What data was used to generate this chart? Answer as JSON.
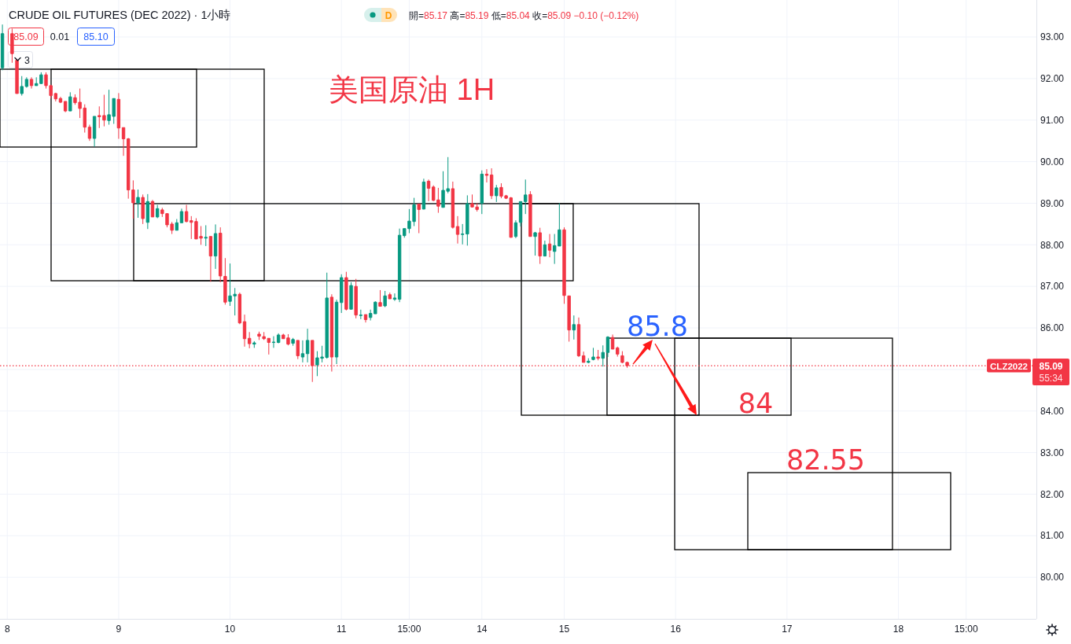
{
  "chart_data": {
    "type": "candlestick",
    "title": "CRUDE OIL FUTURES (DEC 2022) · 1小時",
    "categories": [
      null,
      "8",
      null,
      null,
      null,
      null,
      null,
      null,
      null,
      null,
      null,
      null,
      null,
      null,
      null,
      null,
      null,
      null,
      null,
      null,
      null,
      null,
      null,
      null,
      "9",
      null,
      null,
      null,
      null,
      null,
      null,
      null,
      null,
      null,
      null,
      null,
      null,
      null,
      null,
      null,
      null,
      null,
      null,
      null,
      null,
      null,
      null,
      "10",
      null,
      null,
      null,
      null,
      null,
      null,
      null,
      null,
      null,
      null,
      null,
      null,
      null,
      null,
      null,
      null,
      null,
      null,
      null,
      null,
      null,
      null,
      "11",
      null,
      null,
      null,
      null,
      null,
      null,
      null,
      null,
      null,
      null,
      null,
      null,
      null,
      "15:00",
      null,
      null,
      null,
      null,
      null,
      null,
      null,
      null,
      null,
      null,
      null,
      null,
      null,
      null,
      "14",
      null,
      null,
      null,
      null,
      null,
      null,
      null,
      null,
      null,
      null,
      null,
      null,
      null,
      null,
      null,
      null,
      "15",
      null,
      null,
      null,
      null,
      null,
      null,
      null,
      null,
      null,
      null,
      null,
      null,
      null,
      null,
      null,
      null,
      null,
      null,
      null,
      null,
      null,
      null,
      "16",
      null,
      null,
      null,
      null,
      null,
      null,
      null,
      null,
      null,
      null,
      null,
      null,
      null,
      null,
      null,
      null,
      null,
      null,
      null,
      null,
      null,
      null,
      "17",
      null,
      null,
      null,
      null,
      null,
      null,
      null,
      null,
      null,
      null,
      null,
      null,
      null,
      null,
      null,
      null,
      null,
      null,
      null,
      null,
      null,
      null,
      "18",
      null,
      null,
      null,
      null,
      null,
      null,
      null,
      null,
      null,
      null,
      null,
      null,
      null,
      "15:00",
      null,
      null,
      null,
      null,
      null,
      null,
      null,
      null,
      null,
      null,
      null,
      null,
      null,
      null
    ],
    "ohlc": [
      [
        92.26,
        93.3,
        92.2,
        93.08
      ],
      null,
      [
        93.08,
        93.2,
        92.38,
        92.6
      ],
      [
        92.44,
        92.47,
        91.64,
        91.64
      ],
      [
        91.64,
        92.06,
        91.59,
        91.81
      ],
      [
        91.81,
        92.03,
        91.78,
        91.98
      ],
      [
        91.98,
        92.03,
        91.76,
        91.83
      ],
      [
        91.83,
        92.03,
        91.83,
        91.88
      ],
      [
        91.88,
        92.15,
        91.88,
        92.09
      ],
      [
        92.09,
        92.15,
        91.76,
        91.83
      ],
      [
        91.83,
        91.85,
        91.52,
        91.59
      ],
      [
        91.64,
        91.66,
        91.45,
        91.51
      ],
      [
        91.52,
        91.56,
        91.41,
        91.43
      ],
      [
        91.45,
        91.45,
        91.19,
        91.22
      ],
      [
        91.22,
        91.67,
        91.22,
        91.56
      ],
      [
        91.54,
        91.62,
        91.37,
        91.42
      ],
      [
        91.43,
        91.76,
        91.05,
        91.28
      ],
      [
        91.29,
        91.38,
        90.7,
        90.83
      ],
      [
        90.83,
        90.89,
        90.5,
        90.56
      ],
      [
        90.56,
        91.09,
        90.36,
        91.09
      ],
      [
        91.11,
        91.33,
        90.81,
        91.08
      ],
      [
        91.11,
        91.61,
        90.85,
        91.0
      ],
      [
        90.99,
        91.73,
        90.89,
        91.13
      ],
      [
        91.09,
        91.52,
        90.91,
        91.52
      ],
      [
        91.5,
        91.65,
        90.55,
        90.81
      ],
      [
        90.82,
        90.82,
        90.14,
        90.55
      ],
      [
        90.55,
        90.57,
        89.11,
        89.32
      ],
      [
        89.32,
        89.55,
        88.63,
        89.01
      ],
      [
        89.01,
        89.33,
        88.65,
        89.14
      ],
      [
        89.14,
        89.21,
        88.5,
        88.63
      ],
      [
        88.54,
        89.22,
        88.38,
        89.04
      ],
      [
        89.04,
        89.08,
        88.67,
        88.67
      ],
      [
        88.67,
        88.96,
        88.64,
        88.87
      ],
      [
        88.84,
        88.89,
        88.67,
        88.75
      ],
      [
        88.75,
        88.75,
        88.42,
        88.48
      ],
      [
        88.5,
        88.55,
        88.26,
        88.35
      ],
      [
        88.35,
        88.62,
        88.35,
        88.53
      ],
      [
        88.53,
        88.87,
        88.53,
        88.8
      ],
      [
        88.8,
        88.96,
        88.54,
        88.56
      ],
      [
        88.58,
        88.69,
        88.14,
        88.54
      ],
      [
        88.56,
        88.64,
        88.14,
        88.14
      ],
      [
        88.2,
        88.45,
        88.0,
        88.16
      ],
      [
        88.16,
        88.47,
        87.97,
        88.18
      ],
      [
        88.2,
        88.2,
        87.11,
        87.73
      ],
      [
        87.73,
        88.49,
        87.42,
        88.27
      ],
      [
        88.28,
        88.42,
        87.1,
        87.25
      ],
      [
        87.24,
        87.68,
        86.56,
        86.62
      ],
      [
        86.64,
        87.55,
        86.53,
        86.77
      ],
      [
        86.77,
        86.96,
        86.3,
        86.81
      ],
      [
        86.81,
        86.85,
        86.09,
        86.12
      ],
      [
        86.15,
        86.32,
        85.55,
        85.74
      ],
      [
        85.75,
        85.9,
        85.51,
        85.62
      ],
      [
        85.61,
        85.68,
        85.52,
        85.64
      ],
      [
        85.85,
        85.91,
        85.71,
        85.8
      ],
      [
        85.79,
        85.9,
        85.71,
        85.74
      ],
      [
        85.75,
        85.75,
        85.36,
        85.65
      ],
      [
        85.65,
        85.8,
        85.52,
        85.66
      ],
      [
        85.65,
        85.87,
        85.63,
        85.83
      ],
      [
        85.83,
        85.86,
        85.74,
        85.74
      ],
      [
        85.76,
        85.85,
        85.58,
        85.61
      ],
      [
        85.63,
        85.76,
        85.57,
        85.72
      ],
      [
        85.7,
        85.7,
        85.25,
        85.33
      ],
      [
        85.3,
        85.7,
        85.17,
        85.38
      ],
      [
        85.38,
        85.98,
        85.17,
        85.7
      ],
      [
        85.7,
        85.7,
        84.7,
        85.09
      ],
      [
        85.11,
        85.44,
        84.84,
        85.28
      ],
      [
        85.27,
        85.57,
        85.17,
        85.3
      ],
      [
        85.29,
        87.33,
        85.26,
        86.72
      ],
      [
        86.74,
        86.81,
        84.95,
        85.3
      ],
      [
        85.3,
        86.68,
        85.13,
        86.62
      ],
      [
        86.61,
        87.29,
        86.36,
        87.21
      ],
      [
        87.21,
        87.35,
        86.42,
        86.45
      ],
      [
        86.45,
        87.1,
        86.45,
        87.02
      ],
      [
        87.0,
        87.18,
        86.23,
        86.31
      ],
      [
        86.3,
        86.44,
        86.21,
        86.31
      ],
      [
        86.32,
        86.32,
        86.13,
        86.2
      ],
      [
        86.25,
        86.44,
        86.18,
        86.35
      ],
      [
        86.34,
        86.64,
        86.34,
        86.62
      ],
      [
        86.61,
        86.91,
        86.52,
        86.52
      ],
      [
        86.53,
        86.89,
        86.5,
        86.77
      ],
      [
        86.8,
        86.85,
        86.7,
        86.7
      ],
      [
        86.69,
        86.83,
        86.65,
        86.72
      ],
      [
        86.69,
        88.39,
        86.62,
        88.23
      ],
      [
        88.22,
        88.39,
        88.17,
        88.39
      ],
      [
        88.39,
        88.86,
        88.28,
        88.57
      ],
      [
        88.56,
        89.13,
        88.45,
        88.96
      ],
      [
        88.98,
        88.98,
        88.28,
        88.85
      ],
      [
        88.86,
        89.59,
        88.85,
        89.51
      ],
      [
        89.53,
        89.57,
        89.05,
        89.36
      ],
      [
        89.39,
        89.43,
        89.05,
        89.07
      ],
      [
        89.08,
        89.37,
        88.77,
        88.93
      ],
      [
        88.9,
        89.77,
        88.9,
        89.31
      ],
      [
        89.29,
        90.11,
        89.24,
        89.35
      ],
      [
        89.35,
        89.52,
        88.39,
        88.42
      ],
      [
        88.44,
        88.69,
        88.03,
        88.25
      ],
      [
        88.25,
        88.5,
        88.01,
        88.26
      ],
      [
        88.26,
        89.19,
        87.98,
        88.99
      ],
      [
        88.99,
        89.21,
        88.9,
        88.91
      ],
      [
        88.91,
        89.0,
        88.8,
        88.85
      ],
      [
        89.0,
        89.79,
        88.74,
        89.7
      ],
      [
        89.7,
        89.82,
        89.5,
        89.67
      ],
      [
        89.68,
        89.84,
        89.1,
        89.18
      ],
      [
        89.18,
        89.44,
        89.03,
        89.37
      ],
      [
        89.38,
        89.48,
        89.12,
        89.17
      ],
      [
        89.18,
        89.2,
        89.1,
        89.12
      ],
      [
        89.13,
        89.15,
        88.17,
        88.18
      ],
      [
        88.2,
        88.59,
        88.16,
        88.53
      ],
      [
        88.54,
        89.04,
        88.44,
        89.04
      ],
      [
        89.04,
        89.57,
        88.74,
        89.2
      ],
      [
        89.21,
        89.29,
        88.2,
        88.2
      ],
      [
        88.2,
        88.31,
        87.74,
        88.29
      ],
      [
        88.29,
        88.41,
        87.54,
        87.73
      ],
      [
        87.73,
        88.1,
        87.72,
        88.0
      ],
      [
        88.02,
        88.26,
        87.7,
        87.87
      ],
      [
        87.84,
        88.26,
        87.54,
        87.98
      ],
      [
        87.97,
        89.0,
        87.97,
        88.36
      ],
      [
        88.36,
        88.42,
        86.58,
        86.78
      ],
      [
        86.77,
        86.77,
        85.67,
        85.95
      ],
      [
        85.95,
        86.3,
        85.72,
        86.08
      ],
      [
        86.08,
        86.25,
        85.3,
        85.33
      ],
      [
        85.33,
        85.43,
        85.17,
        85.17
      ],
      [
        85.17,
        85.27,
        85.15,
        85.2
      ],
      [
        85.24,
        85.52,
        85.22,
        85.3
      ],
      [
        85.3,
        85.47,
        85.22,
        85.27
      ],
      [
        85.27,
        85.58,
        85.07,
        85.41
      ],
      [
        85.41,
        85.8,
        85.3,
        85.78
      ],
      [
        85.77,
        85.84,
        85.49,
        85.49
      ],
      [
        85.52,
        85.55,
        85.31,
        85.37
      ],
      [
        85.33,
        85.44,
        85.15,
        85.17
      ],
      [
        85.17,
        85.19,
        85.04,
        85.09
      ],
      null,
      null,
      null,
      null,
      null,
      null,
      null,
      null,
      null,
      null,
      null,
      null,
      null,
      null,
      null,
      null,
      null,
      null,
      null,
      null,
      null,
      null,
      null,
      null,
      null,
      null,
      null,
      null,
      null,
      null,
      null,
      null,
      null,
      null,
      null,
      null,
      null,
      null,
      null,
      null,
      null,
      null,
      null,
      null,
      null,
      null,
      null,
      null,
      null,
      null,
      null,
      null,
      null,
      null,
      null,
      null,
      null,
      null,
      null,
      null,
      null,
      null,
      null,
      null,
      null,
      null,
      null,
      null,
      null,
      null,
      null,
      null,
      null,
      null,
      null,
      null,
      null,
      null,
      null,
      null,
      null,
      null,
      null,
      null
    ],
    "ylim": [
      79.0,
      93.89
    ],
    "yticks": [
      {
        "value": 80,
        "label": "80.00"
      },
      {
        "value": 81,
        "label": "81.00"
      },
      {
        "value": 82,
        "label": "82.00"
      },
      {
        "value": 83,
        "label": "83.00"
      },
      {
        "value": 84,
        "label": "84.00"
      },
      {
        "value": 85,
        "label": null
      },
      {
        "value": 86,
        "label": "86.00"
      },
      {
        "value": 87,
        "label": "87.00"
      },
      {
        "value": 88,
        "label": "88.00"
      },
      {
        "value": 89,
        "label": "89.00"
      },
      {
        "value": 90,
        "label": "90.00"
      },
      {
        "value": 91,
        "label": "91.00"
      },
      {
        "value": 92,
        "label": "92.00"
      },
      {
        "value": 93,
        "label": "93.00"
      }
    ],
    "grid": true,
    "ref_lines": [
      {
        "axis": "y",
        "value": 85.09,
        "label": "CLZ2022",
        "color": "#f23645",
        "line_style": "dotted"
      }
    ],
    "annotations": [
      "美国原油 1H",
      "85.8",
      "84",
      "82.55",
      "開=85.17 高=85.19 低=85.04 收=85.09 −0.10 (−0.12%)",
      "85.09",
      "0.01",
      "85.10",
      "3",
      "D",
      "85.09",
      "55:34"
    ]
  }
}
